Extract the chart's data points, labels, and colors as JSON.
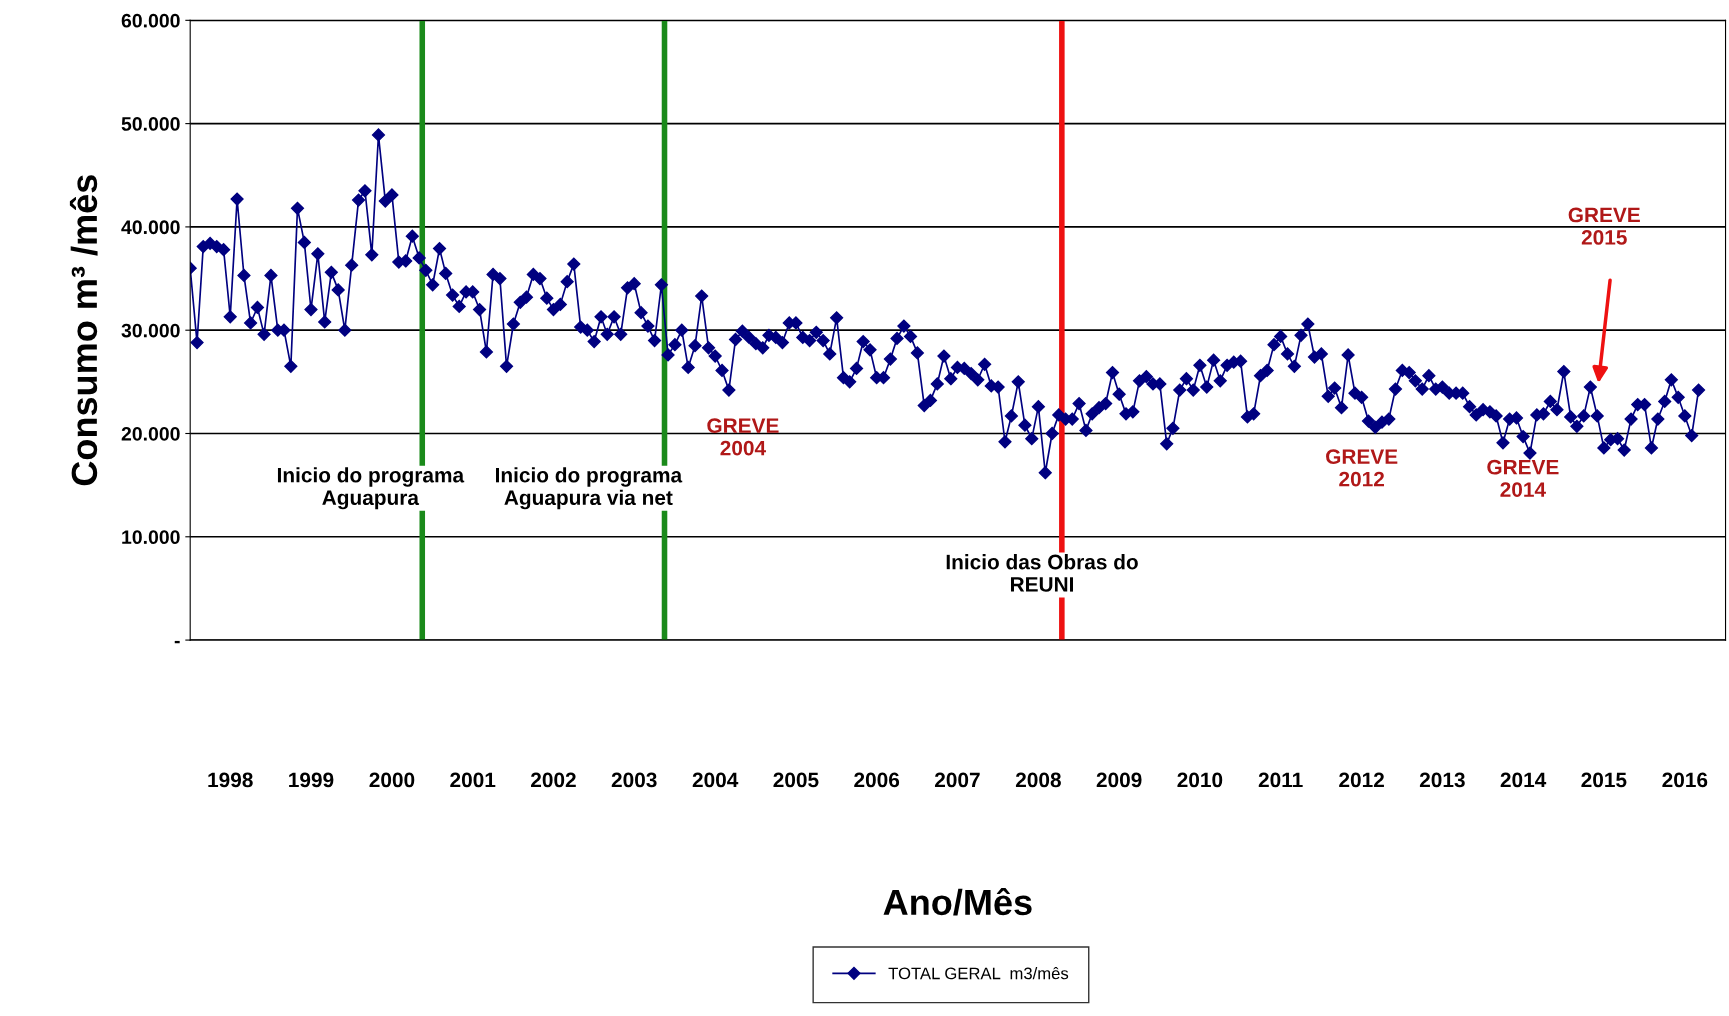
{
  "chart_data": {
    "type": "line",
    "xlabel": "Ano/Mês",
    "ylabel": "Consumo m³ /mês",
    "x": [
      "1998-01",
      "1998-02",
      "1998-03",
      "1998-04",
      "1998-05",
      "1998-06",
      "1998-07",
      "1998-08",
      "1998-09",
      "1998-10",
      "1998-11",
      "1998-12",
      "1999-01",
      "1999-02",
      "1999-03",
      "1999-04",
      "1999-05",
      "1999-06",
      "1999-07",
      "1999-08",
      "1999-09",
      "1999-10",
      "1999-11",
      "1999-12",
      "2000-01",
      "2000-02",
      "2000-03",
      "2000-04",
      "2000-05",
      "2000-06",
      "2000-07",
      "2000-08",
      "2000-09",
      "2000-10",
      "2000-11",
      "2000-12",
      "2001-01",
      "2001-02",
      "2001-03",
      "2001-04",
      "2001-05",
      "2001-06",
      "2001-07",
      "2001-08",
      "2001-09",
      "2001-10",
      "2001-11",
      "2001-12",
      "2002-01",
      "2002-02",
      "2002-03",
      "2002-04",
      "2002-05",
      "2002-06",
      "2002-07",
      "2002-08",
      "2002-09",
      "2002-10",
      "2002-11",
      "2002-12",
      "2003-01",
      "2003-02",
      "2003-03",
      "2003-04",
      "2003-05",
      "2003-06",
      "2003-07",
      "2003-08",
      "2003-09",
      "2003-10",
      "2003-11",
      "2003-12",
      "2004-01",
      "2004-02",
      "2004-03",
      "2004-04",
      "2004-05",
      "2004-06",
      "2004-07",
      "2004-08",
      "2004-09",
      "2004-10",
      "2004-11",
      "2004-12",
      "2005-01",
      "2005-02",
      "2005-03",
      "2005-04",
      "2005-05",
      "2005-06",
      "2005-07",
      "2005-08",
      "2005-09",
      "2005-10",
      "2005-11",
      "2005-12",
      "2006-01",
      "2006-02",
      "2006-03",
      "2006-04",
      "2006-05",
      "2006-06",
      "2006-07",
      "2006-08",
      "2006-09",
      "2006-10",
      "2006-11",
      "2006-12",
      "2007-01",
      "2007-02",
      "2007-03",
      "2007-04",
      "2007-05",
      "2007-06",
      "2007-07",
      "2007-08",
      "2007-09",
      "2007-10",
      "2007-11",
      "2007-12",
      "2008-01",
      "2008-02",
      "2008-03",
      "2008-04",
      "2008-05",
      "2008-06",
      "2008-07",
      "2008-08",
      "2008-09",
      "2008-10",
      "2008-11",
      "2008-12",
      "2009-01",
      "2009-02",
      "2009-03",
      "2009-04",
      "2009-05",
      "2009-06",
      "2009-07",
      "2009-08",
      "2009-09",
      "2009-10",
      "2009-11",
      "2009-12",
      "2010-01",
      "2010-02",
      "2010-03",
      "2010-04",
      "2010-05",
      "2010-06",
      "2010-07",
      "2010-08",
      "2010-09",
      "2010-10",
      "2010-11",
      "2010-12",
      "2011-01",
      "2011-02",
      "2011-03",
      "2011-04",
      "2011-05",
      "2011-06",
      "2011-07",
      "2011-08",
      "2011-09",
      "2011-10",
      "2011-11",
      "2011-12",
      "2012-01",
      "2012-02",
      "2012-03",
      "2012-04",
      "2012-05",
      "2012-06",
      "2012-07",
      "2012-08",
      "2012-09",
      "2012-10",
      "2012-11",
      "2012-12",
      "2013-01",
      "2013-02",
      "2013-03",
      "2013-04",
      "2013-05",
      "2013-06",
      "2013-07",
      "2013-08",
      "2013-09",
      "2013-10",
      "2013-11",
      "2013-12",
      "2014-01",
      "2014-02",
      "2014-03",
      "2014-04",
      "2014-05",
      "2014-06",
      "2014-07",
      "2014-08",
      "2014-09",
      "2014-10",
      "2014-11",
      "2014-12",
      "2015-01",
      "2015-02",
      "2015-03",
      "2015-04",
      "2015-05",
      "2015-06",
      "2015-07",
      "2015-08",
      "2015-09",
      "2015-10",
      "2015-11",
      "2015-12",
      "2016-01",
      "2016-02",
      "2016-03",
      "2016-04",
      "2016-05",
      "2016-06",
      "2016-07",
      "2016-08",
      "2016-09"
    ],
    "series": [
      {
        "name": "TOTAL GERAL  m3/mês",
        "color": "#000080",
        "values": [
          36000,
          28800,
          38100,
          38400,
          38100,
          37800,
          31300,
          42700,
          35300,
          30700,
          32200,
          29600,
          35300,
          30000,
          30000,
          26500,
          41800,
          38500,
          32000,
          37400,
          30800,
          35600,
          33900,
          30000,
          36300,
          42600,
          43500,
          37300,
          48900,
          42500,
          43100,
          36600,
          36700,
          39100,
          37000,
          35800,
          34400,
          37900,
          35500,
          33400,
          32300,
          33700,
          33700,
          32000,
          27900,
          35400,
          35000,
          26500,
          30600,
          32700,
          33200,
          35400,
          35000,
          33100,
          32000,
          32500,
          34700,
          36400,
          30300,
          30000,
          28900,
          31300,
          29600,
          31300,
          29600,
          34100,
          34500,
          31700,
          30400,
          29000,
          34400,
          27600,
          28600,
          30000,
          26400,
          28500,
          33300,
          28300,
          27500,
          26100,
          24200,
          29100,
          29900,
          29300,
          28700,
          28300,
          29500,
          29300,
          28800,
          30700,
          30700,
          29300,
          29000,
          29800,
          29000,
          27700,
          31200,
          25400,
          25000,
          26300,
          28900,
          28100,
          25400,
          25400,
          27200,
          29200,
          30400,
          29400,
          27800,
          22700,
          23200,
          24800,
          27500,
          25300,
          26400,
          26300,
          25800,
          25200,
          26700,
          24600,
          24500,
          19200,
          21700,
          25000,
          20800,
          19500,
          22600,
          16200,
          20000,
          21800,
          21400,
          21400,
          22900,
          20300,
          21900,
          22500,
          22900,
          25900,
          23800,
          21900,
          22100,
          25100,
          25500,
          24800,
          24800,
          19000,
          20500,
          24200,
          25300,
          24200,
          26600,
          24500,
          27100,
          25100,
          26600,
          26900,
          27000,
          21600,
          21900,
          25600,
          26100,
          28600,
          29400,
          27700,
          26500,
          29500,
          30600,
          27400,
          27700,
          23600,
          24400,
          22500,
          27600,
          23900,
          23500,
          21200,
          20600,
          21100,
          21400,
          24300,
          26100,
          25900,
          25100,
          24300,
          25600,
          24300,
          24500,
          23900,
          23900,
          23900,
          22600,
          21800,
          22300,
          22100,
          21700,
          19100,
          21400,
          21500,
          19700,
          18100,
          21800,
          21900,
          23100,
          22300,
          26000,
          21600,
          20700,
          21700,
          24500,
          21700,
          18600,
          19400,
          19500,
          18400,
          21400,
          22800,
          22800,
          18600,
          21400,
          23100,
          25200,
          23500,
          21700,
          19800,
          24200
        ]
      }
    ],
    "xlim": [
      "1998-01-01",
      "2017-01-01"
    ],
    "xticks": [
      {
        "value": "1998-07",
        "label": "1998"
      },
      {
        "value": "1999-07",
        "label": "1999"
      },
      {
        "value": "2000-07",
        "label": "2000"
      },
      {
        "value": "2001-07",
        "label": "2001"
      },
      {
        "value": "2002-07",
        "label": "2002"
      },
      {
        "value": "2003-07",
        "label": "2003"
      },
      {
        "value": "2004-07",
        "label": "2004"
      },
      {
        "value": "2005-07",
        "label": "2005"
      },
      {
        "value": "2006-07",
        "label": "2006"
      },
      {
        "value": "2007-07",
        "label": "2007"
      },
      {
        "value": "2008-07",
        "label": "2008"
      },
      {
        "value": "2009-07",
        "label": "2009"
      },
      {
        "value": "2010-07",
        "label": "2010"
      },
      {
        "value": "2011-07",
        "label": "2011"
      },
      {
        "value": "2012-07",
        "label": "2012"
      },
      {
        "value": "2013-07",
        "label": "2013"
      },
      {
        "value": "2014-07",
        "label": "2014"
      },
      {
        "value": "2015-07",
        "label": "2015"
      },
      {
        "value": "2016-07",
        "label": "2016"
      }
    ],
    "ylim": [
      0,
      60000
    ],
    "yticks": [
      {
        "value": 0,
        "label": "-"
      },
      {
        "value": 10000,
        "label": "10.000"
      },
      {
        "value": 20000,
        "label": "20.000"
      },
      {
        "value": 30000,
        "label": "30.000"
      },
      {
        "value": 40000,
        "label": "40.000"
      },
      {
        "value": 50000,
        "label": "50.000"
      },
      {
        "value": 60000,
        "label": "60.000"
      }
    ],
    "grid": "y",
    "marker": "diamond",
    "line_style": "solid",
    "legend": "bottom",
    "ref_lines": [
      {
        "axis": "x",
        "value": "2000-11-15",
        "color": "#1a8a1a",
        "label": "Inicio do programa\nAguapura"
      },
      {
        "axis": "x",
        "value": "2003-11-15",
        "color": "#1a8a1a",
        "label": "Inicio do programa\nAguapura via net"
      },
      {
        "axis": "x",
        "value": "2008-10-15",
        "color": "#ee1111",
        "label": "Inicio das Obras do\nREUNI"
      }
    ],
    "annotations": [
      "GREVE\n2004",
      "GREVE\n2012",
      "GREVE\n2014",
      "GREVE\n2015"
    ]
  }
}
